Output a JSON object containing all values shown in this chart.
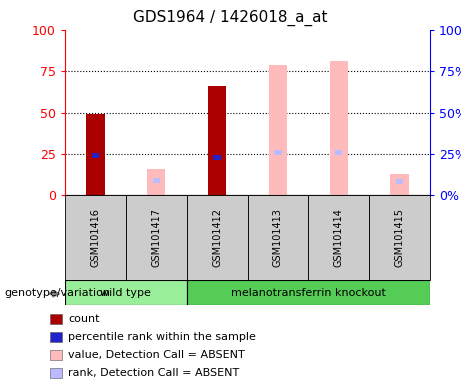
{
  "title": "GDS1964 / 1426018_a_at",
  "samples": [
    "GSM101416",
    "GSM101417",
    "GSM101412",
    "GSM101413",
    "GSM101414",
    "GSM101415"
  ],
  "count_values": [
    49,
    null,
    66,
    null,
    null,
    null
  ],
  "percentile_rank": [
    24,
    null,
    23,
    null,
    null,
    null
  ],
  "absent_value": [
    null,
    16,
    null,
    79,
    81,
    13
  ],
  "absent_rank": [
    null,
    9,
    null,
    26,
    26,
    8
  ],
  "wild_type_count": 2,
  "knockout_count": 4,
  "wild_type_label": "wild type",
  "knockout_label": "melanotransferrin knockout",
  "genotype_label": "genotype/variation",
  "color_count": "#aa0000",
  "color_rank": "#2222cc",
  "color_absent_value": "#ffbbbb",
  "color_absent_rank": "#bbbbff",
  "color_wt_bg": "#99ee99",
  "color_ko_bg": "#55cc55",
  "color_sample_bg": "#cccccc",
  "ylim": [
    0,
    100
  ],
  "yticks": [
    0,
    25,
    50,
    75,
    100
  ],
  "bar_width": 0.3,
  "rank_bar_width": 0.12,
  "legend_items": [
    [
      "#aa0000",
      "count"
    ],
    [
      "#2222cc",
      "percentile rank within the sample"
    ],
    [
      "#ffbbbb",
      "value, Detection Call = ABSENT"
    ],
    [
      "#bbbbff",
      "rank, Detection Call = ABSENT"
    ]
  ]
}
